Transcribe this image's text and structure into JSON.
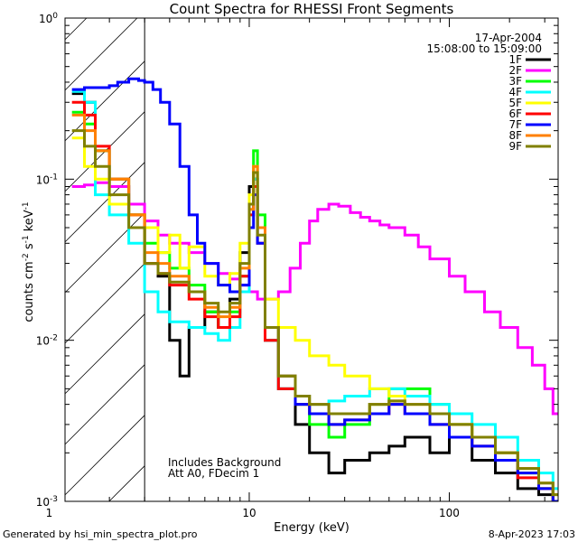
{
  "chart_data": {
    "type": "line",
    "title": "Count Spectra for RHESSI Front Segments",
    "xlabel": "Energy (keV)",
    "ylabel": "counts cm^-2 s^-1 keV^-1",
    "xscale": "log",
    "yscale": "log",
    "xlim": [
      1.2,
      350
    ],
    "ylim": [
      0.001,
      1
    ],
    "x_ticks": [
      {
        "value": 1,
        "label": "1"
      },
      {
        "value": 10,
        "label": "10"
      },
      {
        "value": 100,
        "label": "100"
      }
    ],
    "y_ticks": [
      {
        "value": 0.001,
        "base": "10",
        "exp": "-3"
      },
      {
        "value": 0.01,
        "base": "10",
        "exp": "-2"
      },
      {
        "value": 0.1,
        "base": "10",
        "exp": "-1"
      },
      {
        "value": 1,
        "base": "10",
        "exp": "0"
      }
    ],
    "date": "17-Apr-2004",
    "time_range": "15:08:00 to 15:09:00",
    "annotations": [
      "Includes Background",
      "Att A0, FDecim 1"
    ],
    "hatched_region_upper_keV": 3,
    "series": [
      {
        "name": "1F",
        "color": "#000000",
        "x": [
          1.3,
          1.5,
          1.7,
          2.0,
          2.5,
          3.0,
          3.5,
          4.0,
          4.5,
          5.0,
          6.0,
          7.0,
          8.0,
          9.0,
          10.0,
          10.5,
          11.0,
          12.0,
          14.0,
          17.0,
          20.0,
          25.0,
          30.0,
          40.0,
          50.0,
          60.0,
          80.0,
          100.0,
          130.0,
          170.0,
          220.0,
          280.0,
          330.0
        ],
        "y": [
          0.34,
          0.3,
          0.15,
          0.09,
          0.06,
          0.03,
          0.025,
          0.01,
          0.006,
          0.012,
          0.015,
          0.012,
          0.018,
          0.035,
          0.09,
          0.1,
          0.05,
          0.01,
          0.005,
          0.003,
          0.002,
          0.0015,
          0.0018,
          0.002,
          0.0022,
          0.0025,
          0.002,
          0.0025,
          0.0018,
          0.0015,
          0.0012,
          0.0011,
          0.001
        ]
      },
      {
        "name": "2F",
        "color": "#ff00ff",
        "x": [
          1.3,
          1.5,
          1.7,
          2.0,
          2.5,
          3.0,
          3.5,
          4.0,
          5.0,
          6.0,
          7.0,
          8.0,
          9.0,
          10.0,
          11.0,
          12.0,
          14.0,
          16.0,
          18.0,
          20.0,
          22.0,
          25.0,
          28.0,
          32.0,
          36.0,
          40.0,
          45.0,
          50.0,
          60.0,
          70.0,
          80.0,
          100.0,
          120.0,
          150.0,
          180.0,
          220.0,
          260.0,
          300.0,
          330.0
        ],
        "y": [
          0.09,
          0.092,
          0.095,
          0.09,
          0.07,
          0.055,
          0.045,
          0.04,
          0.035,
          0.03,
          0.026,
          0.024,
          0.022,
          0.02,
          0.018,
          0.018,
          0.02,
          0.028,
          0.04,
          0.055,
          0.065,
          0.07,
          0.068,
          0.062,
          0.058,
          0.055,
          0.052,
          0.05,
          0.045,
          0.038,
          0.032,
          0.025,
          0.02,
          0.015,
          0.012,
          0.009,
          0.007,
          0.005,
          0.0035
        ]
      },
      {
        "name": "3F",
        "color": "#00ff00",
        "x": [
          1.3,
          1.5,
          1.7,
          2.0,
          2.5,
          3.0,
          3.5,
          4.0,
          5.0,
          6.0,
          7.0,
          8.0,
          9.0,
          10.0,
          10.5,
          11.0,
          12.0,
          14.0,
          17.0,
          20.0,
          25.0,
          30.0,
          40.0,
          50.0,
          60.0,
          80.0,
          100.0,
          130.0,
          170.0,
          220.0,
          280.0,
          330.0
        ],
        "y": [
          0.26,
          0.22,
          0.15,
          0.1,
          0.06,
          0.04,
          0.035,
          0.028,
          0.022,
          0.015,
          0.012,
          0.015,
          0.025,
          0.07,
          0.15,
          0.06,
          0.012,
          0.006,
          0.004,
          0.003,
          0.0025,
          0.003,
          0.004,
          0.005,
          0.005,
          0.004,
          0.003,
          0.0025,
          0.002,
          0.0015,
          0.0012,
          0.001
        ]
      },
      {
        "name": "4F",
        "color": "#00ffff",
        "x": [
          1.3,
          1.5,
          1.7,
          2.0,
          2.5,
          3.0,
          3.5,
          4.0,
          5.0,
          6.0,
          7.0,
          8.0,
          9.0,
          10.0,
          10.5,
          11.0,
          12.0,
          14.0,
          17.0,
          20.0,
          25.0,
          30.0,
          40.0,
          50.0,
          60.0,
          80.0,
          100.0,
          130.0,
          170.0,
          220.0,
          280.0,
          330.0
        ],
        "y": [
          0.35,
          0.3,
          0.08,
          0.06,
          0.04,
          0.02,
          0.015,
          0.013,
          0.012,
          0.011,
          0.01,
          0.012,
          0.02,
          0.06,
          0.1,
          0.05,
          0.01,
          0.005,
          0.0045,
          0.004,
          0.0042,
          0.0045,
          0.005,
          0.005,
          0.0045,
          0.004,
          0.0035,
          0.003,
          0.0025,
          0.0018,
          0.0015,
          0.0012
        ]
      },
      {
        "name": "5F",
        "color": "#ffff00",
        "x": [
          1.3,
          1.5,
          1.7,
          2.0,
          2.5,
          3.0,
          3.5,
          4.0,
          4.5,
          5.0,
          6.0,
          7.0,
          8.0,
          9.0,
          10.0,
          10.5,
          11.0,
          12.0,
          14.0,
          17.0,
          20.0,
          25.0,
          30.0,
          40.0,
          50.0,
          60.0,
          80.0,
          100.0,
          130.0,
          170.0,
          220.0,
          280.0,
          330.0
        ],
        "y": [
          0.18,
          0.12,
          0.1,
          0.07,
          0.06,
          0.05,
          0.035,
          0.045,
          0.028,
          0.038,
          0.025,
          0.022,
          0.026,
          0.04,
          0.08,
          0.12,
          0.05,
          0.018,
          0.012,
          0.01,
          0.008,
          0.007,
          0.006,
          0.005,
          0.0045,
          0.004,
          0.0035,
          0.003,
          0.0025,
          0.002,
          0.0015,
          0.0012,
          0.001
        ]
      },
      {
        "name": "6F",
        "color": "#ff0000",
        "x": [
          1.3,
          1.5,
          1.7,
          2.0,
          2.5,
          3.0,
          3.5,
          4.0,
          5.0,
          6.0,
          7.0,
          8.0,
          9.0,
          10.0,
          10.5,
          11.0,
          12.0,
          14.0,
          17.0,
          20.0,
          25.0,
          30.0,
          40.0,
          50.0,
          60.0,
          80.0,
          100.0,
          130.0,
          170.0,
          220.0,
          280.0,
          330.0
        ],
        "y": [
          0.3,
          0.25,
          0.16,
          0.1,
          0.06,
          0.03,
          0.026,
          0.022,
          0.018,
          0.014,
          0.012,
          0.014,
          0.025,
          0.06,
          0.09,
          0.04,
          0.01,
          0.005,
          0.004,
          0.0035,
          0.003,
          0.0032,
          0.0035,
          0.004,
          0.0035,
          0.003,
          0.0025,
          0.0022,
          0.0018,
          0.0014,
          0.0012,
          0.001
        ]
      },
      {
        "name": "7F",
        "color": "#0000ff",
        "x": [
          1.3,
          1.5,
          1.7,
          2.0,
          2.2,
          2.5,
          2.8,
          3.0,
          3.3,
          3.6,
          4.0,
          4.5,
          5.0,
          5.5,
          6.0,
          7.0,
          8.0,
          9.0,
          10.0,
          10.5,
          11.0,
          12.0,
          14.0,
          17.0,
          20.0,
          25.0,
          30.0,
          40.0,
          50.0,
          60.0,
          80.0,
          100.0,
          130.0,
          170.0,
          220.0,
          280.0,
          330.0
        ],
        "y": [
          0.36,
          0.37,
          0.37,
          0.38,
          0.4,
          0.42,
          0.41,
          0.4,
          0.36,
          0.3,
          0.22,
          0.12,
          0.06,
          0.04,
          0.03,
          0.022,
          0.02,
          0.022,
          0.05,
          0.08,
          0.04,
          0.012,
          0.006,
          0.004,
          0.0035,
          0.003,
          0.0032,
          0.0035,
          0.004,
          0.0035,
          0.003,
          0.0025,
          0.0022,
          0.0018,
          0.0015,
          0.0012,
          0.001
        ]
      },
      {
        "name": "8F",
        "color": "#ff8000",
        "x": [
          1.3,
          1.5,
          1.7,
          2.0,
          2.5,
          3.0,
          3.5,
          4.0,
          5.0,
          6.0,
          7.0,
          8.0,
          9.0,
          10.0,
          10.5,
          11.0,
          12.0,
          14.0,
          17.0,
          20.0,
          25.0,
          30.0,
          40.0,
          50.0,
          60.0,
          80.0,
          100.0,
          130.0,
          170.0,
          220.0,
          280.0,
          330.0
        ],
        "y": [
          0.25,
          0.2,
          0.15,
          0.1,
          0.06,
          0.035,
          0.03,
          0.025,
          0.02,
          0.016,
          0.014,
          0.016,
          0.028,
          0.065,
          0.12,
          0.05,
          0.012,
          0.006,
          0.0045,
          0.004,
          0.0035,
          0.0035,
          0.004,
          0.0042,
          0.004,
          0.0035,
          0.003,
          0.0025,
          0.002,
          0.0016,
          0.0013,
          0.0011
        ]
      },
      {
        "name": "9F",
        "color": "#808000",
        "x": [
          1.3,
          1.5,
          1.7,
          2.0,
          2.5,
          3.0,
          3.5,
          4.0,
          5.0,
          6.0,
          7.0,
          8.0,
          9.0,
          10.0,
          10.5,
          11.0,
          12.0,
          14.0,
          17.0,
          20.0,
          25.0,
          30.0,
          40.0,
          50.0,
          60.0,
          80.0,
          100.0,
          130.0,
          170.0,
          220.0,
          280.0,
          330.0
        ],
        "y": [
          0.2,
          0.16,
          0.12,
          0.08,
          0.05,
          0.03,
          0.026,
          0.023,
          0.02,
          0.017,
          0.015,
          0.017,
          0.03,
          0.07,
          0.11,
          0.045,
          0.012,
          0.006,
          0.0045,
          0.004,
          0.0035,
          0.0035,
          0.004,
          0.0042,
          0.004,
          0.0035,
          0.003,
          0.0025,
          0.002,
          0.0016,
          0.0013,
          0.0011
        ]
      }
    ]
  },
  "footer": {
    "generated_by": "Generated by hsi_min_spectra_plot.pro",
    "timestamp": "8-Apr-2023 17:03"
  }
}
